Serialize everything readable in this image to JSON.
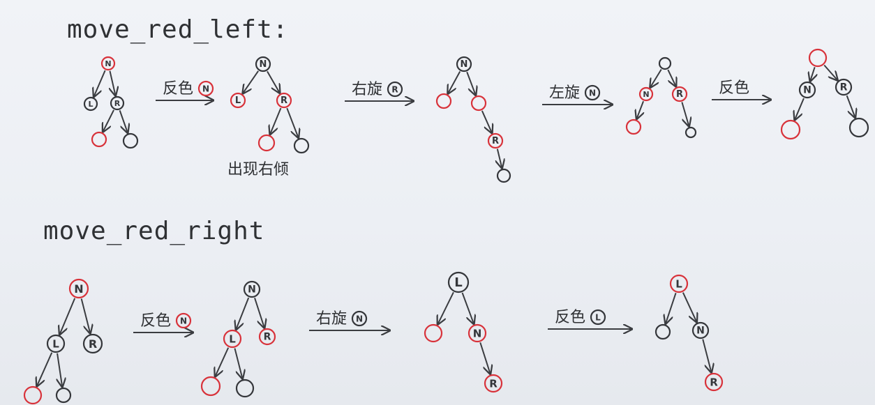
{
  "colors": {
    "ink": "#34363a",
    "red": "#d8323a",
    "paper": "#eef0f4"
  },
  "sections": [
    {
      "title": "move_red_left:",
      "notes": [
        {
          "text": "出现右倾"
        }
      ],
      "operations": [
        {
          "text": "反色",
          "node": "N"
        },
        {
          "text": "右旋",
          "node": "R"
        },
        {
          "text": "左旋",
          "node": "N"
        },
        {
          "text": "反色",
          "node": ""
        }
      ],
      "trees": [
        {
          "nodes": [
            {
              "id": "n",
              "label": "N",
              "color": "red"
            },
            {
              "id": "l",
              "label": "L",
              "color": "black"
            },
            {
              "id": "r",
              "label": "R",
              "color": "black"
            },
            {
              "id": "rl",
              "label": "",
              "color": "red"
            },
            {
              "id": "rr",
              "label": "",
              "color": "black"
            }
          ],
          "edges": [
            [
              "n",
              "l"
            ],
            [
              "n",
              "r"
            ],
            [
              "r",
              "rl"
            ],
            [
              "r",
              "rr"
            ]
          ]
        },
        {
          "nodes": [
            {
              "id": "n",
              "label": "N",
              "color": "black"
            },
            {
              "id": "l",
              "label": "L",
              "color": "red"
            },
            {
              "id": "r",
              "label": "R",
              "color": "red"
            },
            {
              "id": "rl",
              "label": "",
              "color": "red"
            },
            {
              "id": "rr",
              "label": "",
              "color": "black"
            }
          ],
          "edges": [
            [
              "n",
              "l"
            ],
            [
              "n",
              "r"
            ],
            [
              "r",
              "rl"
            ],
            [
              "r",
              "rr"
            ]
          ]
        },
        {
          "nodes": [
            {
              "id": "n",
              "label": "N",
              "color": "black"
            },
            {
              "id": "l",
              "label": "",
              "color": "red"
            },
            {
              "id": "m",
              "label": "",
              "color": "red"
            },
            {
              "id": "r",
              "label": "R",
              "color": "red"
            },
            {
              "id": "rr",
              "label": "",
              "color": "black"
            }
          ],
          "edges": [
            [
              "n",
              "l"
            ],
            [
              "n",
              "m"
            ],
            [
              "m",
              "r"
            ],
            [
              "r",
              "rr"
            ]
          ]
        },
        {
          "nodes": [
            {
              "id": "t",
              "label": "",
              "color": "black"
            },
            {
              "id": "n",
              "label": "N",
              "color": "red"
            },
            {
              "id": "r",
              "label": "R",
              "color": "red"
            },
            {
              "id": "nl",
              "label": "",
              "color": "red"
            },
            {
              "id": "rr",
              "label": "",
              "color": "black"
            }
          ],
          "edges": [
            [
              "t",
              "n"
            ],
            [
              "t",
              "r"
            ],
            [
              "n",
              "nl"
            ],
            [
              "r",
              "rr"
            ]
          ]
        },
        {
          "nodes": [
            {
              "id": "t",
              "label": "",
              "color": "red"
            },
            {
              "id": "n",
              "label": "N",
              "color": "black"
            },
            {
              "id": "r",
              "label": "R",
              "color": "black"
            },
            {
              "id": "nl",
              "label": "",
              "color": "red"
            },
            {
              "id": "rr",
              "label": "",
              "color": "black"
            }
          ],
          "edges": [
            [
              "t",
              "n"
            ],
            [
              "t",
              "r"
            ],
            [
              "n",
              "nl"
            ],
            [
              "r",
              "rr"
            ]
          ]
        }
      ]
    },
    {
      "title": "move_red_right",
      "notes": [],
      "operations": [
        {
          "text": "反色",
          "node": "N"
        },
        {
          "text": "右旋",
          "node": "N"
        },
        {
          "text": "反色",
          "node": "L"
        }
      ],
      "trees": [
        {
          "nodes": [
            {
              "id": "n",
              "label": "N",
              "color": "red"
            },
            {
              "id": "l",
              "label": "L",
              "color": "black"
            },
            {
              "id": "r",
              "label": "R",
              "color": "black"
            },
            {
              "id": "ll",
              "label": "",
              "color": "red"
            },
            {
              "id": "lr",
              "label": "",
              "color": "black"
            }
          ],
          "edges": [
            [
              "n",
              "l"
            ],
            [
              "n",
              "r"
            ],
            [
              "l",
              "ll"
            ],
            [
              "l",
              "lr"
            ]
          ]
        },
        {
          "nodes": [
            {
              "id": "n",
              "label": "N",
              "color": "black"
            },
            {
              "id": "l",
              "label": "L",
              "color": "red"
            },
            {
              "id": "r",
              "label": "R",
              "color": "red"
            },
            {
              "id": "ll",
              "label": "",
              "color": "red"
            },
            {
              "id": "lr",
              "label": "",
              "color": "black"
            }
          ],
          "edges": [
            [
              "n",
              "l"
            ],
            [
              "n",
              "r"
            ],
            [
              "l",
              "ll"
            ],
            [
              "l",
              "lr"
            ]
          ]
        },
        {
          "nodes": [
            {
              "id": "l",
              "label": "L",
              "color": "black"
            },
            {
              "id": "ll",
              "label": "",
              "color": "red"
            },
            {
              "id": "n",
              "label": "N",
              "color": "red"
            },
            {
              "id": "r",
              "label": "R",
              "color": "red"
            }
          ],
          "edges": [
            [
              "l",
              "ll"
            ],
            [
              "l",
              "n"
            ],
            [
              "n",
              "r"
            ]
          ]
        },
        {
          "nodes": [
            {
              "id": "l",
              "label": "L",
              "color": "red"
            },
            {
              "id": "ll",
              "label": "",
              "color": "black"
            },
            {
              "id": "n",
              "label": "N",
              "color": "black"
            },
            {
              "id": "r",
              "label": "R",
              "color": "red"
            }
          ],
          "edges": [
            [
              "l",
              "ll"
            ],
            [
              "l",
              "n"
            ],
            [
              "n",
              "r"
            ]
          ]
        }
      ]
    }
  ]
}
